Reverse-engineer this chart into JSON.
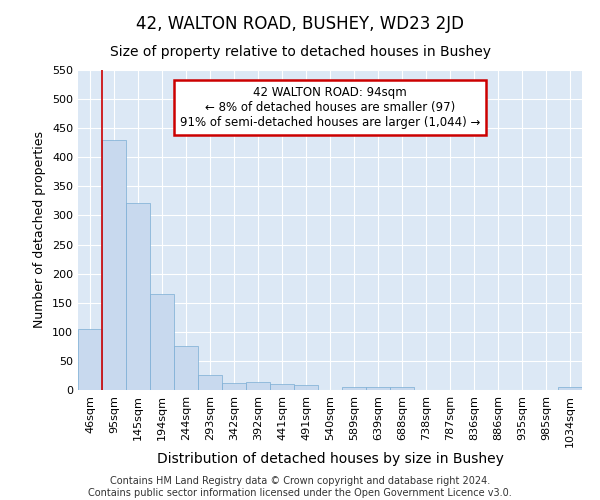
{
  "title": "42, WALTON ROAD, BUSHEY, WD23 2JD",
  "subtitle": "Size of property relative to detached houses in Bushey",
  "xlabel": "Distribution of detached houses by size in Bushey",
  "ylabel": "Number of detached properties",
  "bin_labels": [
    "46sqm",
    "95sqm",
    "145sqm",
    "194sqm",
    "244sqm",
    "293sqm",
    "342sqm",
    "392sqm",
    "441sqm",
    "491sqm",
    "540sqm",
    "589sqm",
    "639sqm",
    "688sqm",
    "738sqm",
    "787sqm",
    "836sqm",
    "886sqm",
    "935sqm",
    "985sqm",
    "1034sqm"
  ],
  "bar_values": [
    104,
    430,
    322,
    165,
    76,
    26,
    12,
    13,
    11,
    8,
    0,
    6,
    5,
    6,
    0,
    0,
    0,
    0,
    0,
    0,
    5
  ],
  "bar_color": "#c8d9ee",
  "bar_edge_color": "#7aadd4",
  "property_line_label": "42 WALTON ROAD: 94sqm",
  "annotation_line1": "← 8% of detached houses are smaller (97)",
  "annotation_line2": "91% of semi-detached houses are larger (1,044) →",
  "annotation_box_color": "#ffffff",
  "annotation_box_edge_color": "#cc0000",
  "vline_color": "#cc0000",
  "vline_x_index": 0.5,
  "ylim": [
    0,
    550
  ],
  "yticks": [
    0,
    50,
    100,
    150,
    200,
    250,
    300,
    350,
    400,
    450,
    500,
    550
  ],
  "footer_line1": "Contains HM Land Registry data © Crown copyright and database right 2024.",
  "footer_line2": "Contains public sector information licensed under the Open Government Licence v3.0.",
  "fig_bg_color": "#ffffff",
  "plot_bg_color": "#dce8f5",
  "grid_color": "#ffffff",
  "title_fontsize": 12,
  "subtitle_fontsize": 10,
  "tick_fontsize": 8,
  "ylabel_fontsize": 9,
  "xlabel_fontsize": 10,
  "footer_fontsize": 7,
  "annotation_fontsize": 8.5
}
